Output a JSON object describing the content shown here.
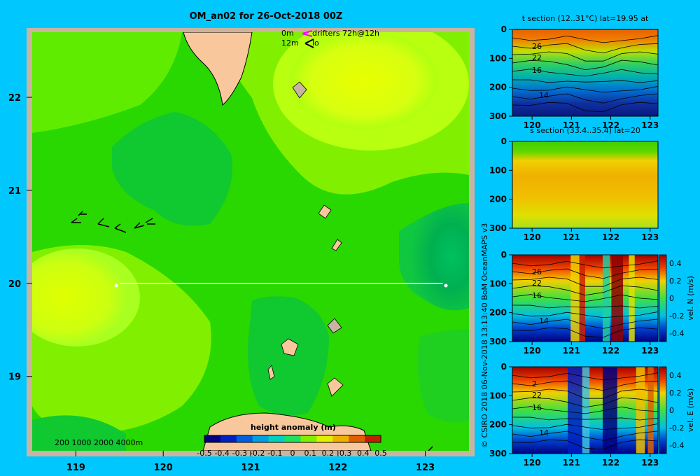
{
  "title": "OM_an02 for 26-Oct-2018 00Z",
  "colors": {
    "background": "#00c8ff",
    "land": "#f8c89c",
    "frame": "#c8b4a0",
    "section_line": "#ffffff"
  },
  "map": {
    "legend_lines": [
      "0m",
      "12m"
    ],
    "drifters_label": "drifters 72h@12h",
    "drifters_line2": "lo",
    "bathymetry_legend": "200  1000  2000  4000m",
    "colorbar": {
      "title": "height anomaly (m)",
      "ticks": [
        "-0.5",
        "-0.4",
        "-0.3",
        "-0.2",
        "-0.1",
        "0",
        "0.1",
        "0.2",
        "0.3",
        "0.4",
        "0.5"
      ]
    },
    "lon_ticks": [
      "119",
      "120",
      "121",
      "122",
      "123"
    ],
    "lat_ticks": [
      "22",
      "21",
      "20",
      "19"
    ]
  },
  "credit": "© CSIRO 2018   06-Nov-2018 13:13:40 BoM OceanMAPS v3",
  "panels": [
    {
      "title": "t section (12..31°C) lat=19.95 at",
      "y_ticks": [
        "0",
        "100",
        "200",
        "300"
      ],
      "x_ticks": [
        "120",
        "121",
        "122",
        "123"
      ],
      "contour_labels": [
        "26",
        "22",
        "16",
        "14"
      ],
      "colorbar": null
    },
    {
      "title": "s section (33.4..35.4) lat=20",
      "y_ticks": [
        "0",
        "100",
        "200",
        "300"
      ],
      "x_ticks": [
        "120",
        "121",
        "122",
        "123"
      ],
      "contour_labels": [],
      "colorbar": null
    },
    {
      "title": "",
      "y_ticks": [
        "0",
        "100",
        "200",
        "300"
      ],
      "x_ticks": [
        "120",
        "121",
        "122",
        "123"
      ],
      "contour_labels": [
        "26",
        "22",
        "16",
        "14"
      ],
      "colorbar": {
        "label": "vel. N (m/s)",
        "ticks": [
          "0.4",
          "0.2",
          "0",
          "-0.2",
          "-0.4"
        ]
      }
    },
    {
      "title": "",
      "y_ticks": [
        "0",
        "100",
        "200",
        "300"
      ],
      "x_ticks": [
        "120",
        "121",
        "122",
        "123"
      ],
      "contour_labels": [
        "2",
        "22",
        "16",
        "14"
      ],
      "colorbar": {
        "label": "vel. E (m/s)",
        "ticks": [
          "0.4",
          "0.2",
          "0",
          "-0.2",
          "-0.4"
        ]
      }
    }
  ],
  "chart_data": [
    {
      "type": "heatmap",
      "title": "OM_an02 for 26-Oct-2018 00Z",
      "xlabel": "",
      "ylabel": "",
      "xlim": [
        118.5,
        123.5
      ],
      "ylim": [
        18.2,
        22.7
      ],
      "x_ticks": [
        119,
        120,
        121,
        122,
        123
      ],
      "y_ticks": [
        19,
        20,
        21,
        22
      ],
      "colorbar_label": "height anomaly (m)",
      "colorbar_range": [
        -0.5,
        0.5
      ],
      "section_line": {
        "lat": 20,
        "lon_start": 119.5,
        "lon_end": 123.2
      }
    },
    {
      "type": "heatmap",
      "title": "t section (12..31°C) lat=19.95 at",
      "xlim": [
        119.5,
        123.2
      ],
      "ylim": [
        300,
        0
      ],
      "contour_labels": [
        26,
        22,
        16,
        14
      ]
    },
    {
      "type": "heatmap",
      "title": "s section (33.4..35.4) lat=20",
      "xlim": [
        119.5,
        123.2
      ],
      "ylim": [
        300,
        0
      ]
    },
    {
      "type": "heatmap",
      "colorbar_label": "vel. N (m/s)",
      "colorbar_range": [
        -0.4,
        0.4
      ],
      "xlim": [
        119.5,
        123.2
      ],
      "ylim": [
        300,
        0
      ],
      "contour_labels": [
        26,
        22,
        16,
        14
      ]
    },
    {
      "type": "heatmap",
      "colorbar_label": "vel. E (m/s)",
      "colorbar_range": [
        -0.4,
        0.4
      ],
      "xlim": [
        119.5,
        123.2
      ],
      "ylim": [
        300,
        0
      ],
      "contour_labels": [
        2,
        22,
        16,
        14
      ]
    }
  ]
}
